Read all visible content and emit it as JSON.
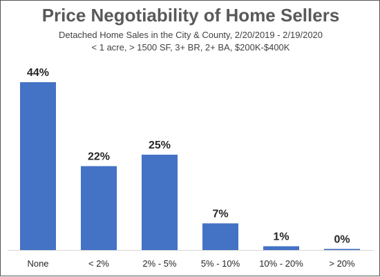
{
  "chart_data": {
    "type": "bar",
    "title": "Price Negotiability of Home Sellers",
    "subtitle_lines": [
      "Detached Home Sales in the City & County, 2/20/2019 - 2/19/2020",
      "< 1 acre, > 1500 SF, 3+ BR, 2+ BA, $200K-$400K"
    ],
    "categories": [
      "None",
      "< 2%",
      "2% - 5%",
      "5% - 10%",
      "10% - 20%",
      "> 20%"
    ],
    "values": [
      44,
      22,
      25,
      7,
      1,
      0.3
    ],
    "data_labels": [
      "44%",
      "22%",
      "25%",
      "7%",
      "1%",
      "0%"
    ],
    "xlabel": "",
    "ylabel": "",
    "ylim": [
      0,
      44
    ],
    "grid": false,
    "bar_color": "#4472C4"
  }
}
